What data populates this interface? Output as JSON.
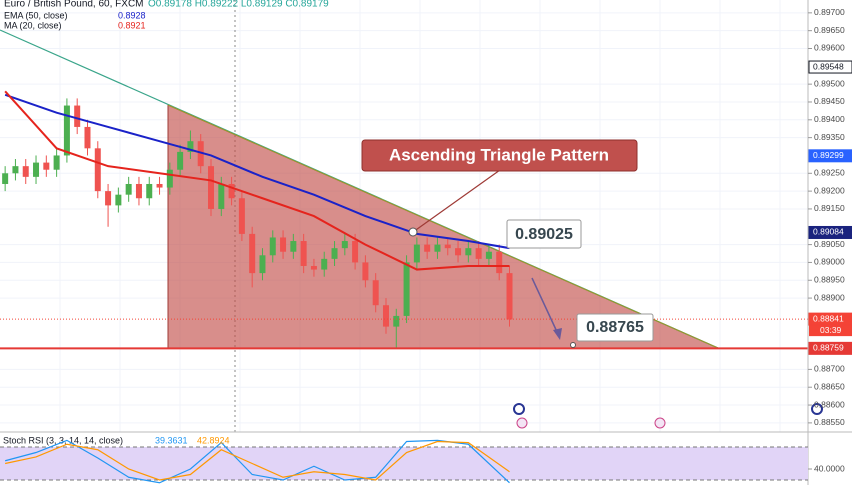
{
  "chart_data": {
    "type": "candlestick",
    "title": "Euro / British Pound, 60, FXCM",
    "ohlc_label": "O0.89178 H0.89222 L0.89129 C0.89179",
    "xlim": [
      -0.5,
      78
    ],
    "ylim": [
      0.88516,
      0.89736
    ],
    "yticks": [
      {
        "value": 0.897,
        "label": "0.89700"
      },
      {
        "value": 0.8965,
        "label": "0.89650"
      },
      {
        "value": 0.896,
        "label": "0.89600"
      },
      {
        "value": 0.895,
        "label": "0.89500"
      },
      {
        "value": 0.8945,
        "label": "0.89450"
      },
      {
        "value": 0.894,
        "label": "0.89400"
      },
      {
        "value": 0.8935,
        "label": "0.89350"
      },
      {
        "value": 0.8925,
        "label": "0.89250"
      },
      {
        "value": 0.892,
        "label": "0.89200"
      },
      {
        "value": 0.8915,
        "label": "0.89150"
      },
      {
        "value": 0.8905,
        "label": "0.89050"
      },
      {
        "value": 0.89,
        "label": "0.89000"
      },
      {
        "value": 0.8895,
        "label": "0.88950"
      },
      {
        "value": 0.889,
        "label": "0.88900"
      },
      {
        "value": 0.887,
        "label": "0.88700"
      },
      {
        "value": 0.8865,
        "label": "0.88650"
      },
      {
        "value": 0.886,
        "label": "0.88600"
      },
      {
        "value": 0.8855,
        "label": "0.88550"
      }
    ],
    "grid": true,
    "up_color": "#4caf50",
    "down_color": "#ef5350",
    "open": [
      0.8922,
      0.8925,
      0.8927,
      0.8924,
      0.8928,
      0.8926,
      0.893,
      0.8944,
      0.8938,
      0.8932,
      0.892,
      0.8916,
      0.8919,
      0.8922,
      0.8918,
      0.8922,
      0.8921,
      0.8926,
      0.8931,
      0.8934,
      0.8927,
      0.8915,
      0.8922,
      0.8918,
      0.8908,
      0.8897,
      0.8902,
      0.8907,
      0.8903,
      0.8906,
      0.8899,
      0.8898,
      0.8901,
      0.8904,
      0.8906,
      0.89,
      0.8895,
      0.8888,
      0.8882,
      0.8885,
      0.89,
      0.8905,
      0.8903,
      0.8905,
      0.8904,
      0.8902,
      0.8904,
      0.8901,
      0.8903,
      0.8897
    ],
    "high": [
      0.8927,
      0.8929,
      0.8929,
      0.893,
      0.893,
      0.8932,
      0.8946,
      0.8946,
      0.894,
      0.8934,
      0.8922,
      0.8921,
      0.8924,
      0.8924,
      0.8924,
      0.8924,
      0.8928,
      0.8933,
      0.8937,
      0.8936,
      0.8929,
      0.8924,
      0.8924,
      0.892,
      0.891,
      0.8904,
      0.8909,
      0.8909,
      0.8908,
      0.8908,
      0.8901,
      0.8903,
      0.8906,
      0.8908,
      0.8908,
      0.8902,
      0.8897,
      0.889,
      0.8887,
      0.8902,
      0.8907,
      0.8907,
      0.8907,
      0.8907,
      0.8906,
      0.8906,
      0.8906,
      0.8905,
      0.8905,
      0.8899
    ],
    "low": [
      0.892,
      0.8923,
      0.8922,
      0.8922,
      0.8924,
      0.8924,
      0.8928,
      0.8936,
      0.893,
      0.8918,
      0.891,
      0.8914,
      0.8917,
      0.8916,
      0.8916,
      0.8919,
      0.8919,
      0.8924,
      0.8929,
      0.8925,
      0.8913,
      0.8913,
      0.8916,
      0.8906,
      0.8893,
      0.8895,
      0.89,
      0.8901,
      0.8901,
      0.8897,
      0.8896,
      0.8896,
      0.8899,
      0.8902,
      0.8898,
      0.8893,
      0.8886,
      0.888,
      0.8876,
      0.8883,
      0.8898,
      0.8901,
      0.8901,
      0.8902,
      0.89,
      0.89,
      0.8899,
      0.8899,
      0.8895,
      0.8882
    ],
    "close": [
      0.8925,
      0.8927,
      0.8924,
      0.8928,
      0.8926,
      0.893,
      0.8944,
      0.8938,
      0.8932,
      0.892,
      0.8916,
      0.8919,
      0.8922,
      0.8918,
      0.8922,
      0.8921,
      0.8926,
      0.8931,
      0.8934,
      0.8927,
      0.8915,
      0.8922,
      0.8918,
      0.8908,
      0.8897,
      0.8902,
      0.8907,
      0.8903,
      0.8906,
      0.8899,
      0.8898,
      0.8901,
      0.8904,
      0.8906,
      0.89,
      0.8895,
      0.8888,
      0.8882,
      0.8885,
      0.89,
      0.8905,
      0.8903,
      0.8905,
      0.8904,
      0.8902,
      0.8904,
      0.8901,
      0.8903,
      0.8897,
      0.8884
    ],
    "lines": [
      {
        "name": "EMA (50, close)",
        "last": 0.8928,
        "color": "#1a22c8",
        "x": [
          0,
          5,
          10,
          15,
          20,
          25,
          30,
          35,
          40,
          45,
          49
        ],
        "values": [
          0.8947,
          0.8942,
          0.8938,
          0.8934,
          0.893,
          0.8924,
          0.8919,
          0.8913,
          0.8908,
          0.8906,
          0.8904
        ]
      },
      {
        "name": "MA (20, close)",
        "last": 0.8921,
        "color": "#e5241d",
        "x": [
          0,
          5,
          10,
          15,
          20,
          25,
          30,
          35,
          40,
          45,
          49
        ],
        "values": [
          0.8948,
          0.8932,
          0.8927,
          0.8925,
          0.8923,
          0.8918,
          0.8913,
          0.8905,
          0.8898,
          0.8899,
          0.8899
        ]
      }
    ],
    "price_tags": [
      {
        "value": 0.89548,
        "bg": "#ffffff",
        "fg": "#131722"
      },
      {
        "value": 0.89299,
        "bg": "#2962ff",
        "fg": "#ffffff"
      },
      {
        "value": 0.89084,
        "bg": "#1a237e",
        "fg": "#ffffff"
      },
      {
        "value": 0.88841,
        "bg": "#f44336",
        "fg": "#ffffff",
        "line": "dotted"
      },
      {
        "value": 0.88759,
        "bg": "#e53935",
        "fg": "#ffffff",
        "line": "solid"
      }
    ],
    "countdown": "03:39",
    "pattern_label": "Ascending Triangle Pattern",
    "callouts": [
      0.89025,
      0.88765
    ],
    "stoch": {
      "name": "Stoch RSI (3, 3, 14, 14, close)",
      "ylim": [
        0,
        100
      ],
      "band": [
        20,
        80
      ],
      "yticks": [
        {
          "value": 40,
          "label": "40.0000"
        }
      ],
      "series": [
        {
          "last": 39.3631,
          "color": "#2196f3",
          "x": [
            0,
            3,
            6,
            9,
            12,
            15,
            18,
            21,
            24,
            27,
            30,
            33,
            36,
            39,
            42,
            45,
            49
          ],
          "values": [
            55,
            70,
            92,
            60,
            25,
            15,
            40,
            88,
            30,
            20,
            45,
            20,
            25,
            90,
            92,
            85,
            15
          ]
        },
        {
          "last": 42.8924,
          "color": "#ff9800",
          "x": [
            0,
            3,
            6,
            9,
            12,
            15,
            18,
            21,
            24,
            27,
            30,
            33,
            36,
            39,
            42,
            45,
            49
          ],
          "values": [
            50,
            62,
            85,
            75,
            40,
            20,
            30,
            75,
            50,
            25,
            35,
            30,
            20,
            70,
            90,
            88,
            35
          ]
        }
      ]
    }
  }
}
